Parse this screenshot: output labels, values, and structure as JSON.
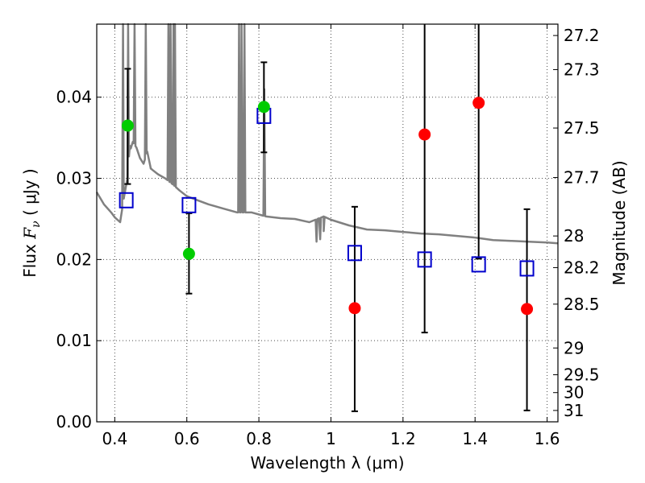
{
  "chart_data": {
    "type": "scatter",
    "xlabel": "Wavelength  λ (μm)",
    "ylabel_prefix": "Flux  ",
    "ylabel_var": "F",
    "ylabel_sub": "ν",
    "ylabel_suffix": " ( μJy )",
    "y2label": "Magnitude (AB)",
    "xlim": [
      0.35,
      1.63
    ],
    "ylim": [
      0.0,
      0.049
    ],
    "grid": true,
    "x_ticks": [
      0.4,
      0.6,
      0.8,
      1.0,
      1.2,
      1.4,
      1.6
    ],
    "x_tick_labels": [
      "0.4",
      "0.6",
      "0.8",
      "1",
      "1.2",
      "1.4",
      "1.6"
    ],
    "y_ticks": [
      0.0,
      0.01,
      0.02,
      0.03,
      0.04
    ],
    "y_tick_labels": [
      "0.00",
      "0.01",
      "0.02",
      "0.03",
      "0.04"
    ],
    "y2_ticks": [
      {
        "label": "27.2",
        "flux": 0.0476
      },
      {
        "label": "27.3",
        "flux": 0.0434
      },
      {
        "label": "27.5",
        "flux": 0.0362
      },
      {
        "label": "27.7",
        "flux": 0.0301
      },
      {
        "label": "28",
        "flux": 0.0229
      },
      {
        "label": "28.2",
        "flux": 0.019
      },
      {
        "label": "28.5",
        "flux": 0.0145
      },
      {
        "label": "29",
        "flux": 0.0091
      },
      {
        "label": "29.5",
        "flux": 0.0058
      },
      {
        "label": "30",
        "flux": 0.0036
      },
      {
        "label": "31",
        "flux": 0.0014
      }
    ],
    "model_spectrum": {
      "name": "",
      "color": "#808080",
      "continuum": [
        [
          0.35,
          0.0283
        ],
        [
          0.37,
          0.0268
        ],
        [
          0.39,
          0.0258
        ],
        [
          0.4,
          0.0252
        ],
        [
          0.415,
          0.0246
        ],
        [
          0.425,
          0.0275
        ],
        [
          0.435,
          0.03
        ],
        [
          0.44,
          0.033
        ],
        [
          0.45,
          0.0345
        ],
        [
          0.46,
          0.0338
        ],
        [
          0.47,
          0.0325
        ],
        [
          0.48,
          0.0318
        ],
        [
          0.49,
          0.0333
        ],
        [
          0.5,
          0.0312
        ],
        [
          0.52,
          0.0305
        ],
        [
          0.54,
          0.03
        ],
        [
          0.56,
          0.0293
        ],
        [
          0.58,
          0.0285
        ],
        [
          0.6,
          0.0278
        ],
        [
          0.63,
          0.0273
        ],
        [
          0.66,
          0.0268
        ],
        [
          0.7,
          0.0263
        ],
        [
          0.74,
          0.0258
        ],
        [
          0.78,
          0.0258
        ],
        [
          0.82,
          0.0253
        ],
        [
          0.86,
          0.0251
        ],
        [
          0.9,
          0.025
        ],
        [
          0.94,
          0.0246
        ],
        [
          0.98,
          0.0253
        ],
        [
          1.0,
          0.0249
        ],
        [
          1.05,
          0.0242
        ],
        [
          1.1,
          0.0237
        ],
        [
          1.15,
          0.0236
        ],
        [
          1.2,
          0.0234
        ],
        [
          1.25,
          0.0232
        ],
        [
          1.3,
          0.0231
        ],
        [
          1.35,
          0.0229
        ],
        [
          1.4,
          0.0227
        ],
        [
          1.45,
          0.0224
        ],
        [
          1.5,
          0.0223
        ],
        [
          1.55,
          0.0222
        ],
        [
          1.6,
          0.0221
        ],
        [
          1.63,
          0.022
        ]
      ],
      "emission_lines": [
        [
          0.423,
          0.049
        ],
        [
          0.437,
          0.049
        ],
        [
          0.442,
          0.034
        ],
        [
          0.455,
          0.049
        ],
        [
          0.486,
          0.049
        ],
        [
          0.501,
          0.0312
        ],
        [
          0.549,
          0.049
        ],
        [
          0.555,
          0.049
        ],
        [
          0.563,
          0.049
        ],
        [
          0.567,
          0.049
        ],
        [
          0.745,
          0.049
        ],
        [
          0.752,
          0.049
        ],
        [
          0.76,
          0.049
        ],
        [
          0.815,
          0.041
        ]
      ],
      "absorption_dips": [
        [
          0.96,
          0.0222
        ],
        [
          0.97,
          0.0225
        ],
        [
          0.98,
          0.0235
        ]
      ]
    },
    "series": [
      {
        "name": "",
        "marker": "circle",
        "color": "#00cc00",
        "points": [
          {
            "x": 0.436,
            "y": 0.0365
          },
          {
            "x": 0.606,
            "y": 0.0207
          },
          {
            "x": 0.814,
            "y": 0.0388
          }
        ]
      },
      {
        "name": "",
        "marker": "circle",
        "color": "#ff0000",
        "points": [
          {
            "x": 1.066,
            "y": 0.014
          },
          {
            "x": 1.26,
            "y": 0.0354
          },
          {
            "x": 1.41,
            "y": 0.0393
          },
          {
            "x": 1.544,
            "y": 0.0139
          }
        ]
      },
      {
        "name": "",
        "marker": "open-square",
        "color": "#0000cc",
        "points": [
          {
            "x": 0.432,
            "y": 0.0273
          },
          {
            "x": 0.606,
            "y": 0.0267
          },
          {
            "x": 0.814,
            "y": 0.0377
          },
          {
            "x": 1.066,
            "y": 0.0208
          },
          {
            "x": 1.26,
            "y": 0.02
          },
          {
            "x": 1.41,
            "y": 0.0194
          },
          {
            "x": 1.544,
            "y": 0.0189
          }
        ]
      }
    ],
    "error_bars": [
      {
        "x": 0.436,
        "low": 0.0293,
        "high": 0.0435
      },
      {
        "x": 0.606,
        "low": 0.0158,
        "high": 0.0257
      },
      {
        "x": 0.814,
        "low": 0.0332,
        "high": 0.0443
      },
      {
        "x": 1.066,
        "low": 0.0013,
        "high": 0.0265
      },
      {
        "x": 1.26,
        "low": 0.011,
        "high": 0.049
      },
      {
        "x": 1.41,
        "low": 0.0201,
        "high": 0.049
      },
      {
        "x": 1.544,
        "low": 0.0014,
        "high": 0.0262
      }
    ]
  }
}
